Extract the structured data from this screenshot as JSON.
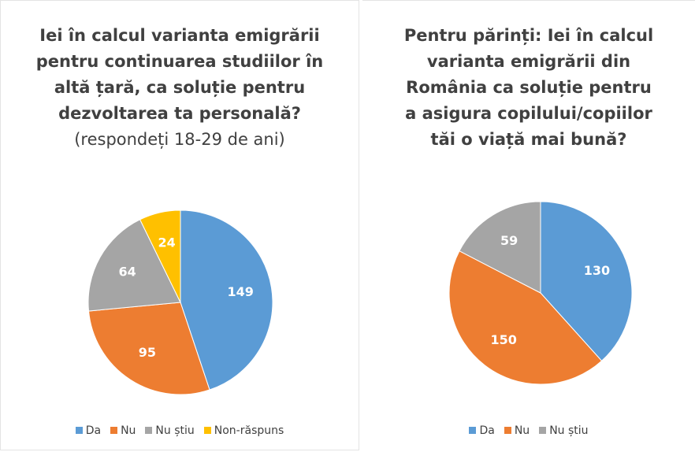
{
  "chart_data": [
    {
      "type": "pie",
      "title": "Iei în calcul varianta emigrării pentru continuarea studiilor în altă țară, ca soluție pentru dezvoltarea ta personală?",
      "subtitle": "(respondeți 18-29 de ani)",
      "categories": [
        "Da",
        "Nu",
        "Nu știu",
        "Non-răspuns"
      ],
      "values": [
        149,
        95,
        64,
        24
      ],
      "colors": [
        "#5b9bd5",
        "#ed7d31",
        "#a5a5a5",
        "#ffc000"
      ]
    },
    {
      "type": "pie",
      "title": "Pentru părinți: Iei în calcul varianta emigrării din România ca soluție pentru a asigura copilului/copiilor tăi o viață mai bună?",
      "categories": [
        "Da",
        "Nu",
        "Nu știu"
      ],
      "values": [
        130,
        150,
        59
      ],
      "colors": [
        "#5b9bd5",
        "#ed7d31",
        "#a5a5a5"
      ]
    }
  ]
}
